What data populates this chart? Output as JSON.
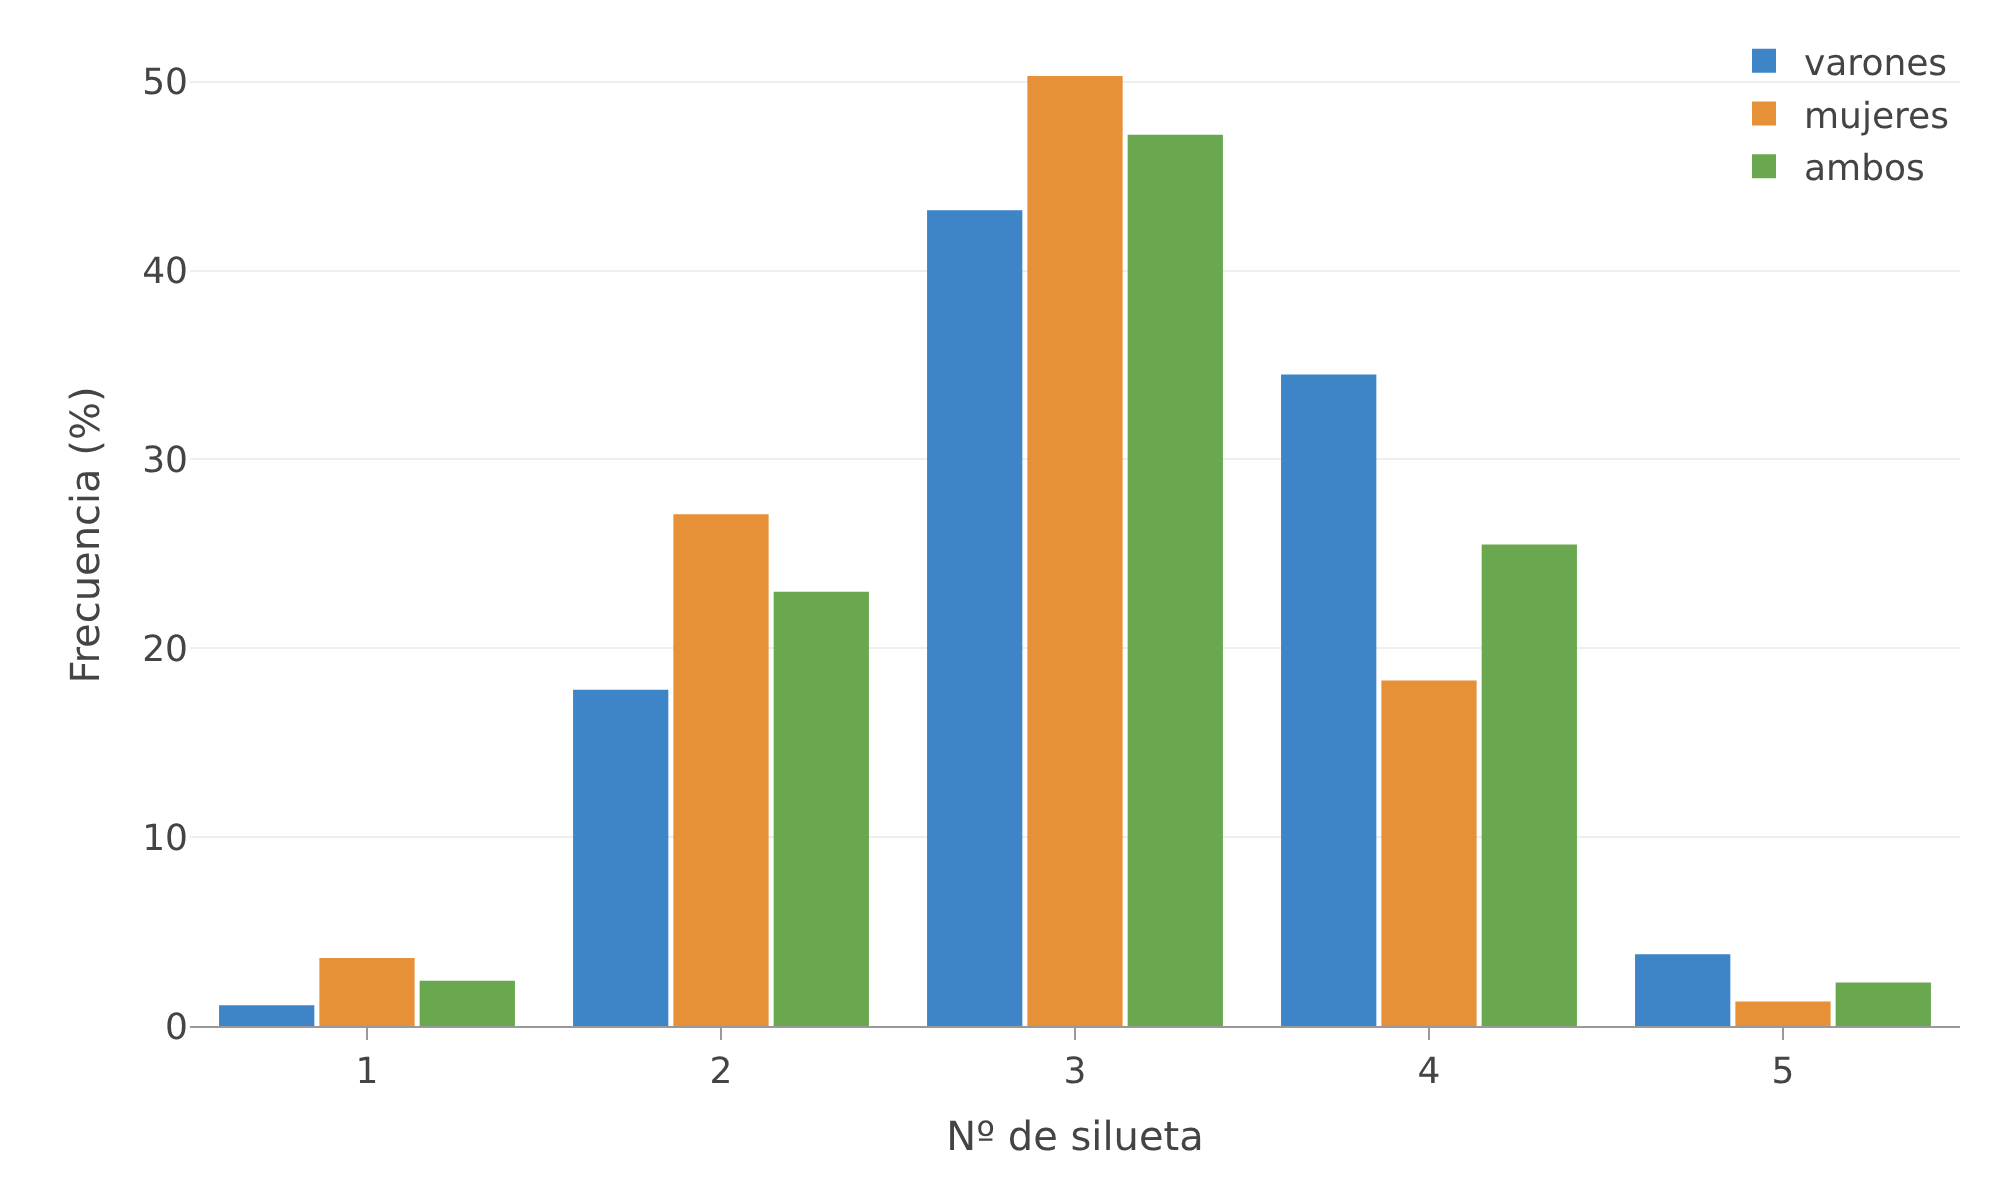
{
  "chart_data": {
    "type": "bar",
    "xlabel": "Nº de silueta",
    "ylabel": "Frecuencia (%)",
    "categories": [
      "1",
      "2",
      "3",
      "4",
      "5"
    ],
    "series": [
      {
        "name": "varones",
        "color": "#3d85c6",
        "values": [
          1.1,
          17.8,
          43.2,
          34.5,
          3.8
        ]
      },
      {
        "name": "mujeres",
        "color": "#e69138",
        "values": [
          3.6,
          27.1,
          50.3,
          18.3,
          1.3
        ]
      },
      {
        "name": "ambos",
        "color": "#6aa84f",
        "values": [
          2.4,
          23.0,
          47.2,
          25.5,
          2.3
        ]
      }
    ],
    "ylim": [
      0,
      52
    ],
    "yticks": [
      0,
      10,
      20,
      30,
      40,
      50
    ],
    "grid": "y",
    "legend": "top right"
  }
}
